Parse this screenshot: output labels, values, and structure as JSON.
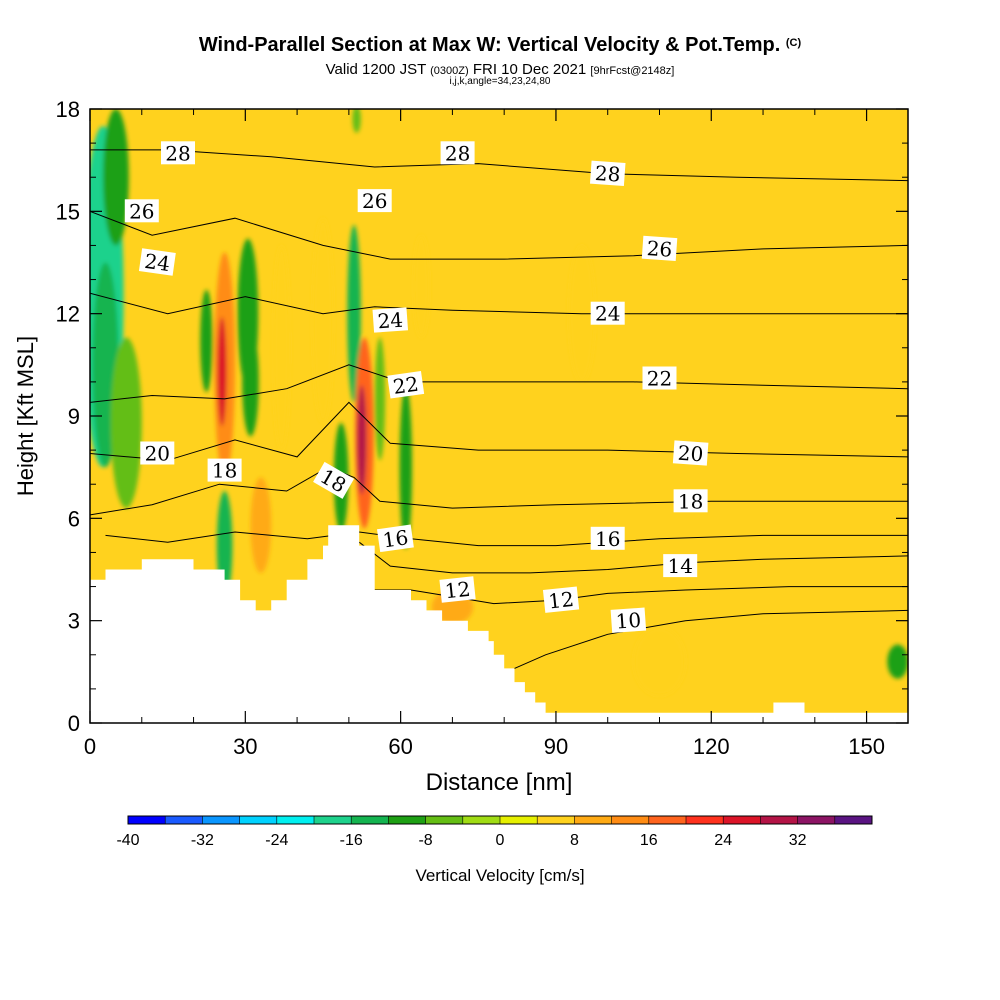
{
  "title": {
    "main": "Wind-Parallel Section at Max W: Vertical Velocity & Pot.Temp.",
    "copyright": "(C)",
    "valid_prefix": "Valid 1200 JST",
    "valid_utc": "(0300Z)",
    "valid_date": "FRI 10 Dec 2021",
    "forecast": "[9hrFcst@2148z]",
    "params": "i,j,k,angle=34,23,24,80"
  },
  "chart_data": {
    "type": "heatmap",
    "xlabel": "Distance [nm]",
    "ylabel": "Height [Kft MSL]",
    "xlim": [
      0,
      158
    ],
    "ylim": [
      0,
      18
    ],
    "x_ticks": [
      "0",
      "30",
      "60",
      "90",
      "120",
      "150"
    ],
    "x_tick_values": [
      0,
      30,
      60,
      90,
      120,
      150
    ],
    "y_ticks": [
      "0",
      "3",
      "6",
      "9",
      "12",
      "15",
      "18"
    ],
    "y_tick_values": [
      0,
      3,
      6,
      9,
      12,
      15,
      18
    ],
    "grid": false,
    "background_fill": "#ffd21e",
    "terrain": [
      [
        0,
        4.2
      ],
      [
        3,
        4.2
      ],
      [
        3,
        4.5
      ],
      [
        10,
        4.5
      ],
      [
        10,
        4.8
      ],
      [
        20,
        4.8
      ],
      [
        20,
        4.5
      ],
      [
        26,
        4.5
      ],
      [
        26,
        4.2
      ],
      [
        29,
        4.2
      ],
      [
        29,
        3.6
      ],
      [
        32,
        3.6
      ],
      [
        32,
        3.3
      ],
      [
        35,
        3.3
      ],
      [
        35,
        3.6
      ],
      [
        38,
        3.6
      ],
      [
        38,
        4.2
      ],
      [
        42,
        4.2
      ],
      [
        42,
        4.8
      ],
      [
        45,
        4.8
      ],
      [
        45,
        5.2
      ],
      [
        46,
        5.2
      ],
      [
        46,
        5.8
      ],
      [
        52,
        5.8
      ],
      [
        52,
        5.2
      ],
      [
        55,
        5.2
      ],
      [
        55,
        3.9
      ],
      [
        62,
        3.9
      ],
      [
        62,
        3.6
      ],
      [
        65,
        3.6
      ],
      [
        65,
        3.3
      ],
      [
        68,
        3.3
      ],
      [
        68,
        3.0
      ],
      [
        73,
        3.0
      ],
      [
        73,
        2.7
      ],
      [
        77,
        2.7
      ],
      [
        77,
        2.4
      ],
      [
        78,
        2.4
      ],
      [
        78,
        2.0
      ],
      [
        80,
        2.0
      ],
      [
        80,
        1.6
      ],
      [
        82,
        1.6
      ],
      [
        82,
        1.2
      ],
      [
        84,
        1.2
      ],
      [
        84,
        0.9
      ],
      [
        86,
        0.9
      ],
      [
        86,
        0.6
      ],
      [
        88,
        0.6
      ],
      [
        88,
        0.3
      ],
      [
        132,
        0.3
      ],
      [
        132,
        0.6
      ],
      [
        138,
        0.6
      ],
      [
        138,
        0.3
      ],
      [
        158,
        0.3
      ]
    ],
    "vertical_velocity_cells": [
      {
        "x": 2.5,
        "y": 12.5,
        "rx": 4,
        "ry": 5.0,
        "value": -20
      },
      {
        "x": 3,
        "y": 10.5,
        "rx": 2.5,
        "ry": 3.0,
        "value": -16
      },
      {
        "x": 5,
        "y": 16.0,
        "rx": 2.5,
        "ry": 2.0,
        "value": -10
      },
      {
        "x": 7,
        "y": 8.8,
        "rx": 3,
        "ry": 2.5,
        "value": -8
      },
      {
        "x": 22.5,
        "y": 11.2,
        "rx": 1.2,
        "ry": 1.5,
        "value": -10
      },
      {
        "x": 26,
        "y": 10.5,
        "rx": 2.0,
        "ry": 3.3,
        "value": 14
      },
      {
        "x": 25.5,
        "y": 10.3,
        "rx": 0.9,
        "ry": 1.6,
        "value": 24
      },
      {
        "x": 26,
        "y": 5.2,
        "rx": 1.5,
        "ry": 1.6,
        "value": -14
      },
      {
        "x": 30.5,
        "y": 12.0,
        "rx": 2.0,
        "ry": 2.2,
        "value": -10
      },
      {
        "x": 31,
        "y": 10.0,
        "rx": 1.6,
        "ry": 1.6,
        "value": -10
      },
      {
        "x": 33,
        "y": 5.8,
        "rx": 2.0,
        "ry": 1.4,
        "value": 10
      },
      {
        "x": 37,
        "y": 11.0,
        "rx": 1.6,
        "ry": 3.0,
        "value": 6
      },
      {
        "x": 45,
        "y": 11.8,
        "rx": 2.0,
        "ry": 3.0,
        "value": 6
      },
      {
        "x": 51,
        "y": 12.0,
        "rx": 1.3,
        "ry": 2.6,
        "value": -16
      },
      {
        "x": 51.5,
        "y": 17.7,
        "rx": 0.8,
        "ry": 0.4,
        "value": -8
      },
      {
        "x": 53,
        "y": 8.5,
        "rx": 1.8,
        "ry": 2.8,
        "value": 16
      },
      {
        "x": 52.5,
        "y": 8.3,
        "rx": 0.9,
        "ry": 1.6,
        "value": 28
      },
      {
        "x": 48.5,
        "y": 7.2,
        "rx": 1.4,
        "ry": 1.6,
        "value": -12
      },
      {
        "x": 56,
        "y": 9.5,
        "rx": 1.0,
        "ry": 1.8,
        "value": -8
      },
      {
        "x": 61,
        "y": 7.5,
        "rx": 1.2,
        "ry": 2.4,
        "value": -10
      },
      {
        "x": 64,
        "y": 12.8,
        "rx": 1.5,
        "ry": 1.5,
        "value": 6
      },
      {
        "x": 70,
        "y": 3.4,
        "rx": 4.0,
        "ry": 0.5,
        "value": 8
      },
      {
        "x": 95,
        "y": 12.0,
        "rx": 2.5,
        "ry": 2.0,
        "value": 6
      },
      {
        "x": 110,
        "y": 1.8,
        "rx": 5.0,
        "ry": 1.0,
        "value": 6
      },
      {
        "x": 156,
        "y": 1.8,
        "rx": 2.0,
        "ry": 0.5,
        "value": -10
      }
    ],
    "pot_temp_contours": [
      {
        "level": 10,
        "points": [
          [
            82,
            1.6
          ],
          [
            88,
            2.0
          ],
          [
            100,
            2.6
          ],
          [
            115,
            3.0
          ],
          [
            130,
            3.2
          ],
          [
            158,
            3.3
          ]
        ]
      },
      {
        "level": 12,
        "points": [
          [
            55,
            3.9
          ],
          [
            62,
            3.9
          ],
          [
            70,
            3.7
          ],
          [
            78,
            3.5
          ],
          [
            90,
            3.6
          ],
          [
            100,
            3.8
          ],
          [
            115,
            3.9
          ],
          [
            135,
            4.0
          ],
          [
            158,
            4.0
          ]
        ]
      },
      {
        "level": 14,
        "points": [
          [
            52,
            5.3
          ],
          [
            58,
            4.6
          ],
          [
            70,
            4.4
          ],
          [
            85,
            4.4
          ],
          [
            100,
            4.5
          ],
          [
            115,
            4.7
          ],
          [
            130,
            4.8
          ],
          [
            158,
            4.9
          ]
        ]
      },
      {
        "level": 16,
        "points": [
          [
            3,
            5.5
          ],
          [
            15,
            5.3
          ],
          [
            28,
            5.6
          ],
          [
            42,
            5.4
          ],
          [
            52,
            5.6
          ],
          [
            62,
            5.4
          ],
          [
            75,
            5.2
          ],
          [
            90,
            5.2
          ],
          [
            110,
            5.4
          ],
          [
            130,
            5.5
          ],
          [
            158,
            5.5
          ]
        ]
      },
      {
        "level": 18,
        "points": [
          [
            0,
            6.1
          ],
          [
            12,
            6.4
          ],
          [
            25,
            7.0
          ],
          [
            38,
            6.8
          ],
          [
            46,
            7.5
          ],
          [
            51,
            7.2
          ],
          [
            56,
            6.5
          ],
          [
            70,
            6.3
          ],
          [
            90,
            6.4
          ],
          [
            120,
            6.5
          ],
          [
            158,
            6.5
          ]
        ]
      },
      {
        "level": 20,
        "points": [
          [
            0,
            7.9
          ],
          [
            15,
            7.7
          ],
          [
            28,
            8.3
          ],
          [
            40,
            7.8
          ],
          [
            50,
            9.4
          ],
          [
            58,
            8.2
          ],
          [
            75,
            8.0
          ],
          [
            100,
            8.0
          ],
          [
            125,
            7.9
          ],
          [
            158,
            7.8
          ]
        ]
      },
      {
        "level": 22,
        "points": [
          [
            0,
            9.4
          ],
          [
            12,
            9.6
          ],
          [
            26,
            9.5
          ],
          [
            38,
            9.8
          ],
          [
            50,
            10.5
          ],
          [
            60,
            10.0
          ],
          [
            80,
            10.0
          ],
          [
            105,
            10.0
          ],
          [
            130,
            9.9
          ],
          [
            158,
            9.8
          ]
        ]
      },
      {
        "level": 24,
        "points": [
          [
            0,
            12.6
          ],
          [
            15,
            12.0
          ],
          [
            30,
            12.5
          ],
          [
            45,
            12.0
          ],
          [
            55,
            12.2
          ],
          [
            70,
            12.1
          ],
          [
            95,
            12.0
          ],
          [
            125,
            12.0
          ],
          [
            158,
            12.0
          ]
        ]
      },
      {
        "level": 26,
        "points": [
          [
            0,
            15.0
          ],
          [
            12,
            14.3
          ],
          [
            28,
            14.8
          ],
          [
            45,
            14.0
          ],
          [
            58,
            13.6
          ],
          [
            80,
            13.6
          ],
          [
            105,
            13.7
          ],
          [
            130,
            13.9
          ],
          [
            158,
            14.0
          ]
        ]
      },
      {
        "level": 28,
        "points": [
          [
            0,
            16.8
          ],
          [
            15,
            16.8
          ],
          [
            35,
            16.6
          ],
          [
            55,
            16.3
          ],
          [
            75,
            16.4
          ],
          [
            100,
            16.1
          ],
          [
            125,
            16.0
          ],
          [
            158,
            15.9
          ]
        ]
      }
    ],
    "contour_labels": [
      {
        "text": "28",
        "x": 17,
        "y": 16.7,
        "rot": 0
      },
      {
        "text": "28",
        "x": 71,
        "y": 16.7,
        "rot": 0
      },
      {
        "text": "28",
        "x": 100,
        "y": 16.1,
        "rot": 4
      },
      {
        "text": "26",
        "x": 10,
        "y": 15.0,
        "rot": 0
      },
      {
        "text": "26",
        "x": 55,
        "y": 15.3,
        "rot": 0
      },
      {
        "text": "26",
        "x": 110,
        "y": 13.9,
        "rot": 4
      },
      {
        "text": "24",
        "x": 13,
        "y": 13.5,
        "rot": 8
      },
      {
        "text": "24",
        "x": 58,
        "y": 11.8,
        "rot": -4
      },
      {
        "text": "24",
        "x": 100,
        "y": 12.0,
        "rot": 0
      },
      {
        "text": "22",
        "x": 61,
        "y": 9.9,
        "rot": -8
      },
      {
        "text": "22",
        "x": 110,
        "y": 10.1,
        "rot": 0
      },
      {
        "text": "20",
        "x": 13,
        "y": 7.9,
        "rot": 0
      },
      {
        "text": "20",
        "x": 116,
        "y": 7.9,
        "rot": 4
      },
      {
        "text": "18",
        "x": 26,
        "y": 7.4,
        "rot": 0
      },
      {
        "text": "18",
        "x": 47,
        "y": 7.1,
        "rot": 30
      },
      {
        "text": "18",
        "x": 116,
        "y": 6.5,
        "rot": 0
      },
      {
        "text": "16",
        "x": 59,
        "y": 5.4,
        "rot": -8
      },
      {
        "text": "16",
        "x": 100,
        "y": 5.4,
        "rot": 0
      },
      {
        "text": "14",
        "x": 114,
        "y": 4.6,
        "rot": 0
      },
      {
        "text": "12",
        "x": 71,
        "y": 3.9,
        "rot": -6
      },
      {
        "text": "12",
        "x": 91,
        "y": 3.6,
        "rot": -6
      },
      {
        "text": "10",
        "x": 104,
        "y": 3.0,
        "rot": -4
      }
    ],
    "colorbar": {
      "label": "Vertical Velocity [cm/s]",
      "tick_labels": [
        "-40",
        "-32",
        "-24",
        "-16",
        "-8",
        "0",
        "8",
        "16",
        "24",
        "32"
      ],
      "tick_values": [
        -40,
        -32,
        -24,
        -16,
        -8,
        0,
        8,
        16,
        24,
        32
      ],
      "bins": [
        -40,
        -36,
        -32,
        -28,
        -24,
        -20,
        -16,
        -12,
        -8,
        -4,
        0,
        4,
        8,
        12,
        16,
        20,
        24,
        28,
        32,
        36
      ],
      "colors": [
        "#0000ff",
        "#1a5aff",
        "#0a96ff",
        "#00d2ff",
        "#00f0f0",
        "#1ed28c",
        "#14b450",
        "#1ea014",
        "#64be14",
        "#a0dc14",
        "#e6f000",
        "#ffd21e",
        "#ffaa14",
        "#ff8c14",
        "#ff641e",
        "#ff321e",
        "#dc1428",
        "#b41446",
        "#8c1464",
        "#5a1482"
      ]
    }
  }
}
